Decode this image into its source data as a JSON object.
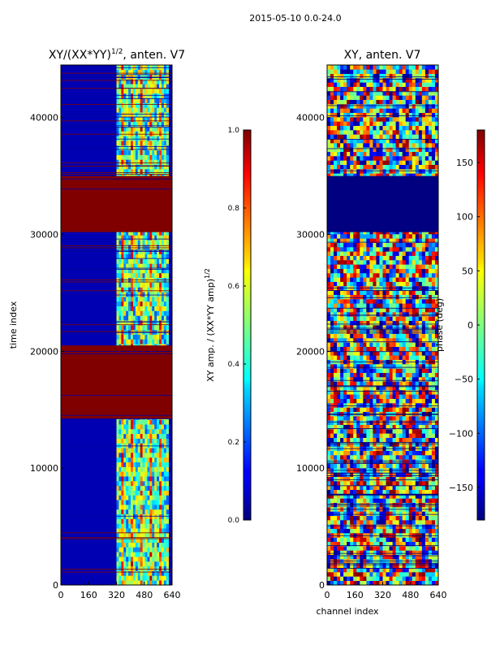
{
  "figure_title": "2015-05-10 0.0-24.0",
  "chart_data": [
    {
      "type": "heatmap",
      "title": "XY/(XX*YY)^1/2, anten. V7",
      "title_main": "XY/(XX*YY)",
      "title_exponent": "1/2",
      "title_suffix": ", anten. V7",
      "xlabel": "",
      "ylabel": "time index",
      "xlim": [
        0,
        640
      ],
      "ylim": [
        0,
        44500
      ],
      "xticks": [
        0,
        160,
        320,
        480,
        640
      ],
      "yticks": [
        0,
        10000,
        20000,
        30000,
        40000
      ],
      "colormap": "jet",
      "colorbar": {
        "label": "XY amp. / (XX*YY amp)^1/2",
        "label_main": "XY amp. / (XX*YY amp)",
        "label_exponent": "1/2",
        "range": [
          0.0,
          1.0
        ],
        "ticks": [
          "0.0",
          "0.2",
          "0.4",
          "0.6",
          "0.8",
          "1.0"
        ]
      },
      "saturated_time_ranges": [
        [
          30200,
          35000
        ],
        [
          14200,
          20500
        ]
      ],
      "active_channel_range": [
        320,
        620
      ],
      "background_value": 0.05,
      "active_value": 0.45
    },
    {
      "type": "heatmap",
      "title": "XY, anten. V7",
      "xlabel": "channel index",
      "ylabel": "",
      "xlim": [
        0,
        640
      ],
      "ylim": [
        0,
        44500
      ],
      "xticks": [
        0,
        160,
        320,
        480,
        640
      ],
      "yticks": [
        0,
        10000,
        20000,
        30000,
        40000
      ],
      "colormap": "jet",
      "colorbar": {
        "label": "phase (deg)",
        "range": [
          -180,
          180
        ],
        "ticks": [
          "150",
          "100",
          "50",
          "0",
          "−50",
          "−100",
          "−150"
        ],
        "tick_values": [
          150,
          100,
          50,
          0,
          -50,
          -100,
          -150
        ]
      },
      "flat_time_ranges": [
        [
          30200,
          35000
        ]
      ],
      "flat_value": -180
    }
  ]
}
